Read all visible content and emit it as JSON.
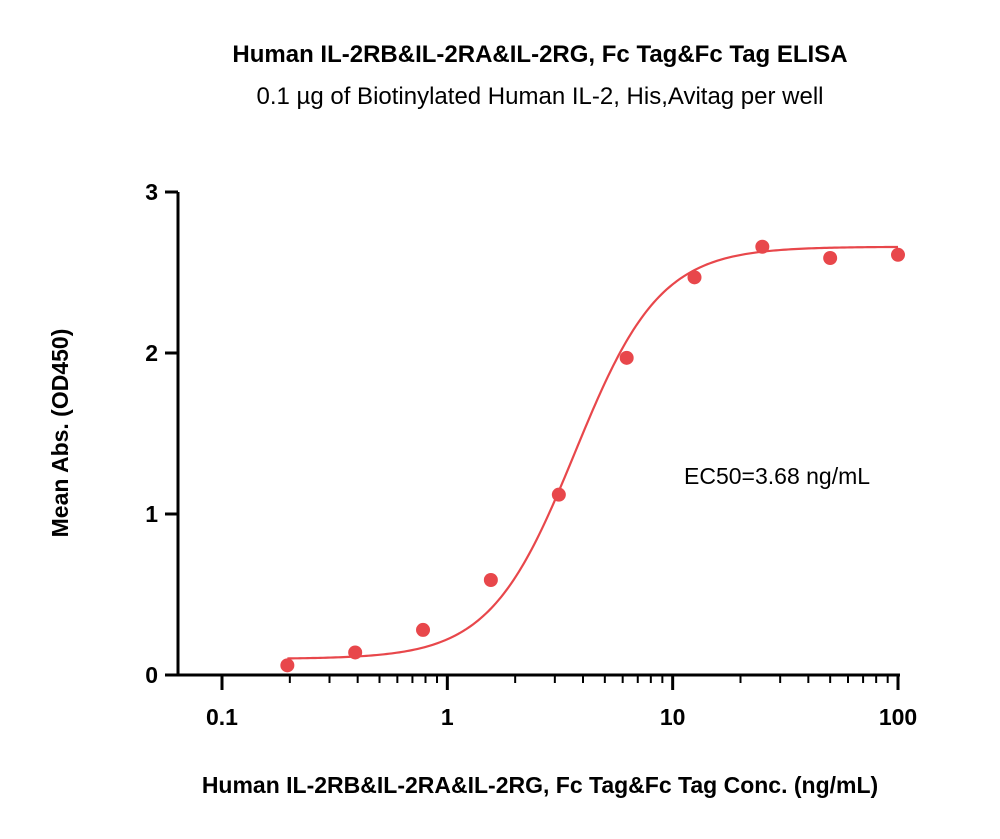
{
  "chart_data": {
    "type": "scatter",
    "title": "Human IL-2RB&IL-2RA&IL-2RG, Fc Tag&Fc Tag ELISA",
    "subtitle": "0.1 µg of Biotinylated Human IL-2, His,Avitag per well",
    "xlabel": "Human IL-2RB&IL-2RA&IL-2RG, Fc Tag&Fc Tag Conc. (ng/mL)",
    "ylabel": "Mean Abs. (OD450)",
    "x_scale": "log",
    "xlim": [
      0.1,
      100
    ],
    "ylim": [
      0,
      3
    ],
    "x_ticks": [
      0.1,
      1,
      10,
      100
    ],
    "x_tick_labels": [
      "0.1",
      "1",
      "10",
      "100"
    ],
    "y_ticks": [
      0,
      1,
      2,
      3
    ],
    "y_tick_labels": [
      "0",
      "1",
      "2",
      "3"
    ],
    "grid": false,
    "color": "#e8474b",
    "series": [
      {
        "x": [
          0.195,
          0.39,
          0.78,
          1.56,
          3.125,
          6.25,
          12.5,
          25,
          50,
          100
        ],
        "y": [
          0.06,
          0.14,
          0.28,
          0.59,
          1.12,
          1.97,
          2.47,
          2.66,
          2.59,
          2.61
        ]
      }
    ],
    "fit": {
      "model": "4PL",
      "bottom": 0.1,
      "top": 2.66,
      "ec50": 3.68,
      "hill": 2.3
    },
    "annotation": "EC50=3.68 ng/mL"
  }
}
